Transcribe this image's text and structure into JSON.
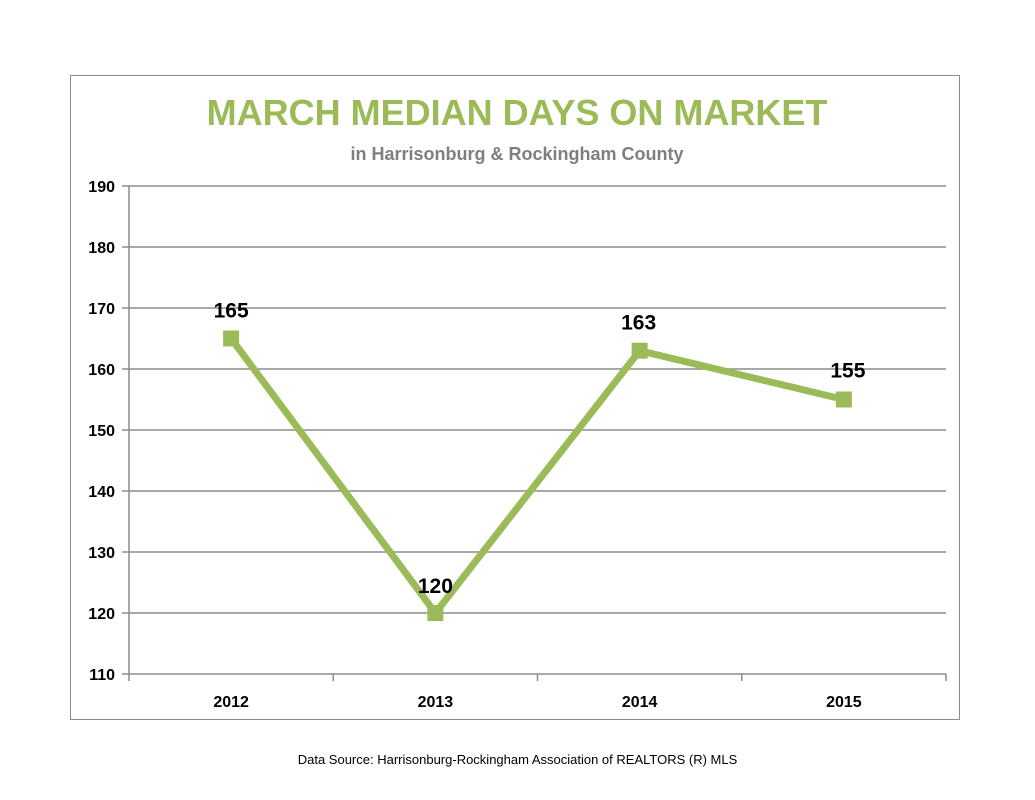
{
  "chart_data": {
    "type": "line",
    "title": "MARCH MEDIAN DAYS ON MARKET",
    "subtitle": "in Harrisonburg  & Rockingham County",
    "categories": [
      "2012",
      "2013",
      "2014",
      "2015"
    ],
    "series": [
      {
        "values": [
          165,
          120,
          163,
          155
        ]
      }
    ],
    "ylim": [
      110,
      190
    ],
    "yticks": [
      110,
      120,
      130,
      140,
      150,
      160,
      170,
      180,
      190
    ],
    "grid": true,
    "data_labels": [
      "165",
      "120",
      "163",
      "155"
    ],
    "color": "#9bbb59"
  },
  "source_note": "Data Source: Harrisonburg-Rockingham Association of REALTORS (R) MLS"
}
